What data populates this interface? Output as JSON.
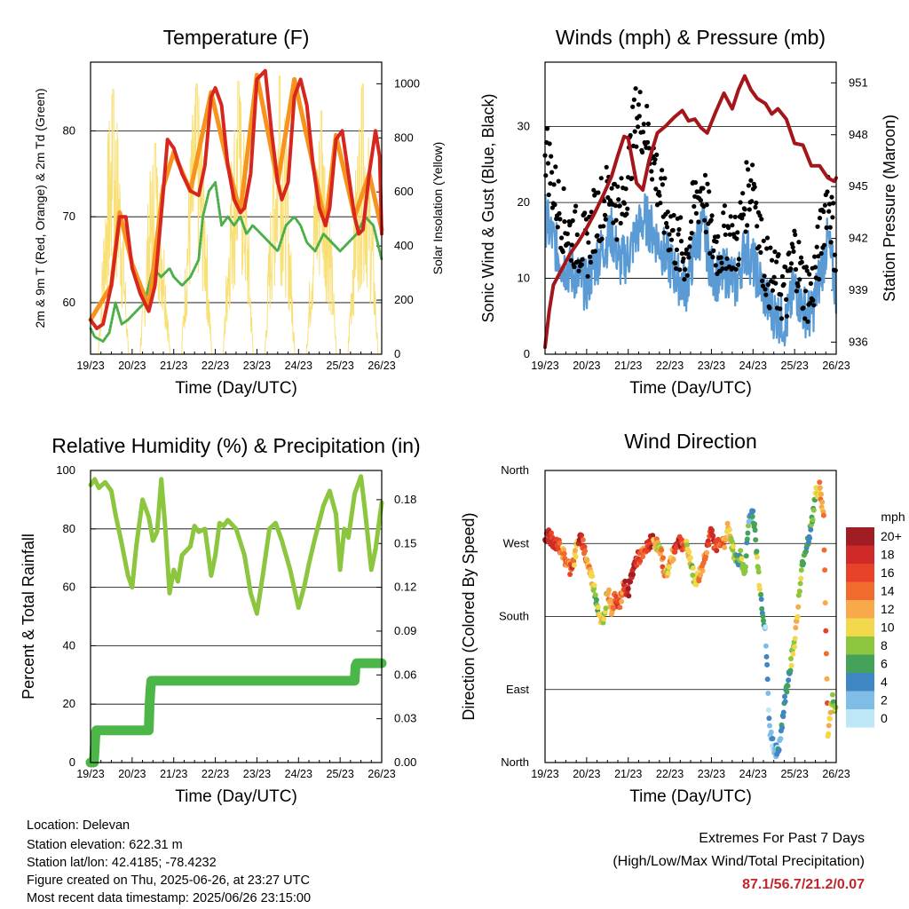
{
  "info": {
    "location": "Location: Delevan",
    "elevation": "Station elevation: 622.31 m",
    "latlon": "Station lat/lon: 42.4185; -78.4232",
    "created": "Figure created on Thu, 2025-06-26, at 23:27 UTC",
    "recent": "Most recent data timestamp: 2025/06/26 23:15:00"
  },
  "extremes": {
    "title": "Extremes For Past 7 Days",
    "subtitle": "(High/Low/Max Wind/Total Precipitation)",
    "values": "87.1/56.7/21.2/0.07"
  },
  "colors": {
    "temp2m": "#d7261e",
    "temp9m": "#f7941d",
    "dewpoint": "#4daf4a",
    "solar": "#f9e076",
    "wind": "#5b9bd5",
    "gust": "#000000",
    "pressure": "#a4161a",
    "rh": "#8cc63f",
    "precip": "#4cb648"
  },
  "chart_data": [
    {
      "type": "line",
      "title": "Temperature (F)",
      "xlabel": "Time (Day/UTC)",
      "ylabel": "2m & 9m T (Red, Orange) & 2m Td (Green)",
      "y2label": "Solar Insolation (Yellow)",
      "x_ticks": [
        "19/23",
        "20/23",
        "21/23",
        "22/23",
        "23/23",
        "24/23",
        "25/23",
        "26/23"
      ],
      "xlim": [
        0,
        7
      ],
      "ylim": [
        54,
        88
      ],
      "y_ticks": [
        60,
        70,
        80
      ],
      "y2lim": [
        0,
        1080
      ],
      "y2_ticks": [
        0,
        200,
        400,
        600,
        800,
        1000
      ],
      "grid": true,
      "series": [
        {
          "name": "2m T",
          "axis": "y",
          "color": "#d7261e",
          "x": [
            0,
            0.15,
            0.3,
            0.5,
            0.7,
            0.85,
            1.0,
            1.2,
            1.4,
            1.55,
            1.75,
            1.85,
            2.0,
            2.2,
            2.4,
            2.6,
            2.75,
            2.9,
            3.0,
            3.15,
            3.3,
            3.45,
            3.6,
            3.7,
            3.85,
            4.0,
            4.2,
            4.35,
            4.5,
            4.6,
            4.75,
            4.9,
            5.05,
            5.2,
            5.35,
            5.5,
            5.65,
            5.75,
            5.9,
            6.05,
            6.2,
            6.35,
            6.45,
            6.55,
            6.7,
            6.85,
            6.95,
            7.0
          ],
          "y": [
            58,
            57,
            57.5,
            62,
            70,
            70,
            64,
            61,
            59,
            62,
            73,
            79,
            78,
            75,
            73,
            72.5,
            76,
            84,
            85,
            83,
            76,
            72,
            70.5,
            71,
            75,
            86,
            87,
            80,
            74,
            72,
            74,
            84,
            86,
            83,
            76,
            71,
            69,
            71,
            79,
            80,
            75,
            70,
            68,
            68.5,
            75,
            80,
            77,
            68
          ]
        },
        {
          "name": "9m T",
          "axis": "y",
          "color": "#f7941d",
          "x": [
            0,
            0.5,
            0.7,
            1.0,
            1.4,
            1.75,
            2.0,
            2.4,
            2.9,
            3.3,
            3.6,
            4.0,
            4.5,
            4.9,
            5.35,
            5.65,
            5.9,
            6.35,
            6.7,
            7.0
          ],
          "y": [
            58,
            62,
            70.5,
            64.5,
            59.5,
            73.5,
            77.5,
            73,
            84.5,
            76,
            70.5,
            86.5,
            74,
            86,
            76,
            69,
            79.5,
            70,
            75,
            68.5
          ]
        },
        {
          "name": "2m Td",
          "axis": "y",
          "color": "#4daf4a",
          "x": [
            0,
            0.1,
            0.3,
            0.45,
            0.6,
            0.75,
            0.9,
            1.1,
            1.3,
            1.5,
            1.7,
            1.9,
            2.0,
            2.2,
            2.4,
            2.6,
            2.7,
            2.85,
            3.0,
            3.15,
            3.3,
            3.45,
            3.6,
            3.75,
            3.9,
            4.1,
            4.3,
            4.5,
            4.7,
            4.9,
            5.05,
            5.2,
            5.4,
            5.6,
            5.8,
            6.0,
            6.2,
            6.4,
            6.6,
            6.8,
            6.95,
            7.0
          ],
          "y": [
            57,
            56,
            55.5,
            56.5,
            60,
            57.5,
            58,
            59,
            60,
            64,
            63,
            64,
            63,
            62,
            63,
            65,
            70,
            73,
            74,
            69,
            70,
            69,
            70,
            68,
            69,
            68,
            67,
            66,
            69,
            70,
            69,
            67,
            66,
            68,
            67,
            66,
            67,
            68,
            70,
            69,
            66,
            65
          ]
        },
        {
          "name": "Solar Insolation",
          "axis": "y2",
          "color": "#f9e076",
          "peaks_x": [
            0.55,
            1.55,
            2.55,
            3.55,
            4.55,
            5.55,
            6.55
          ],
          "peaks_y": [
            980,
            780,
            1000,
            1010,
            1030,
            900,
            1000
          ]
        }
      ]
    },
    {
      "type": "line",
      "title": "Winds (mph) & Pressure (mb)",
      "xlabel": "Time (Day/UTC)",
      "ylabel": "Sonic Wind & Gust (Blue, Black)",
      "y2label": "Station Pressure (Maroon)",
      "x_ticks": [
        "19/23",
        "20/23",
        "21/23",
        "22/23",
        "23/23",
        "24/23",
        "25/23",
        "26/23"
      ],
      "xlim": [
        0,
        7
      ],
      "ylim": [
        0,
        38.5
      ],
      "y_ticks": [
        0,
        10,
        20,
        30
      ],
      "y2lim": [
        935.3,
        952.2
      ],
      "y2_ticks": [
        936,
        939,
        942,
        945,
        948,
        951
      ],
      "grid": true,
      "series": [
        {
          "name": "Sonic Wind",
          "axis": "y",
          "color": "#5b9bd5",
          "x": [
            0,
            0.2,
            0.4,
            0.6,
            0.8,
            1.0,
            1.2,
            1.4,
            1.6,
            1.8,
            2.0,
            2.2,
            2.4,
            2.6,
            2.8,
            3.0,
            3.2,
            3.4,
            3.6,
            3.8,
            4.0,
            4.2,
            4.4,
            4.6,
            4.8,
            5.0,
            5.2,
            5.4,
            5.6,
            5.8,
            6.0,
            6.2,
            6.4,
            6.6,
            6.8,
            7.0
          ],
          "y": [
            18,
            15,
            12,
            11,
            10,
            9,
            12,
            14,
            16,
            12,
            13,
            16,
            18,
            16,
            14,
            12,
            10,
            9,
            14,
            17,
            11,
            10,
            11,
            9,
            14,
            12,
            9,
            6,
            5,
            4,
            9,
            6,
            5,
            10,
            15,
            8
          ]
        },
        {
          "name": "Gust",
          "axis": "y",
          "color": "#000000",
          "x": [
            0,
            0.2,
            0.4,
            0.6,
            0.8,
            1.0,
            1.2,
            1.4,
            1.6,
            1.8,
            2.0,
            2.2,
            2.4,
            2.6,
            2.8,
            3.0,
            3.2,
            3.4,
            3.6,
            3.8,
            4.0,
            4.2,
            4.4,
            4.6,
            4.8,
            5.0,
            5.2,
            5.4,
            5.6,
            5.8,
            6.0,
            6.2,
            6.4,
            6.6,
            6.8,
            7.0
          ],
          "y": [
            28,
            22,
            18,
            16,
            15,
            14,
            18,
            20,
            22,
            18,
            24,
            32,
            30,
            26,
            20,
            17,
            14,
            13,
            20,
            22,
            15,
            14,
            16,
            14,
            20,
            24,
            14,
            10,
            9,
            8,
            14,
            9,
            8,
            14,
            22,
            13
          ]
        },
        {
          "name": "Station Pressure",
          "axis": "y2",
          "color": "#a4161a",
          "x": [
            0,
            0.1,
            0.2,
            0.4,
            0.6,
            0.8,
            1.0,
            1.2,
            1.4,
            1.6,
            1.75,
            1.9,
            2.0,
            2.1,
            2.2,
            2.35,
            2.5,
            2.7,
            2.9,
            3.1,
            3.3,
            3.45,
            3.6,
            3.75,
            3.9,
            4.1,
            4.3,
            4.5,
            4.65,
            4.8,
            4.95,
            5.1,
            5.3,
            5.45,
            5.6,
            5.8,
            6.0,
            6.2,
            6.4,
            6.6,
            6.8,
            6.95,
            7.0
          ],
          "y": [
            935.7,
            937.8,
            939.3,
            940.2,
            941.1,
            941.8,
            942.6,
            943.5,
            944.5,
            945.6,
            946.8,
            947.9,
            947.8,
            946.5,
            945.2,
            944.8,
            946.5,
            948.1,
            948.5,
            949.0,
            949.4,
            948.8,
            948.9,
            948.4,
            948.1,
            949.3,
            950.4,
            949.5,
            950.6,
            951.4,
            950.6,
            950.1,
            949.8,
            949.2,
            949.5,
            948.9,
            947.5,
            947.4,
            946.2,
            946.2,
            945.5,
            945.3,
            945.5
          ]
        }
      ]
    },
    {
      "type": "line",
      "title": "Relative Humidity (%) & Precipitation (in)",
      "xlabel": "Time (Day/UTC)",
      "ylabel": "Percent & Total Rainfall",
      "x_ticks": [
        "19/23",
        "20/23",
        "21/23",
        "22/23",
        "23/23",
        "24/23",
        "25/23",
        "26/23"
      ],
      "xlim": [
        0,
        7
      ],
      "ylim": [
        0,
        100
      ],
      "y_ticks": [
        0,
        20,
        40,
        60,
        80,
        100
      ],
      "y2lim": [
        0,
        0.2
      ],
      "y2_ticks": [
        "0.00",
        "0.03",
        "0.06",
        "0.09",
        "0.12",
        "0.15",
        "0.18"
      ],
      "grid": true,
      "series": [
        {
          "name": "Relative Humidity",
          "axis": "y",
          "color": "#8cc63f",
          "x": [
            0,
            0.1,
            0.2,
            0.35,
            0.5,
            0.6,
            0.75,
            0.9,
            1.0,
            1.1,
            1.25,
            1.4,
            1.5,
            1.6,
            1.7,
            1.8,
            1.9,
            2.0,
            2.1,
            2.2,
            2.4,
            2.5,
            2.6,
            2.75,
            2.9,
            3.0,
            3.1,
            3.2,
            3.3,
            3.5,
            3.7,
            3.85,
            4.0,
            4.15,
            4.3,
            4.45,
            4.6,
            4.8,
            5.0,
            5.15,
            5.25,
            5.4,
            5.6,
            5.75,
            5.9,
            6.0,
            6.1,
            6.2,
            6.35,
            6.5,
            6.6,
            6.75,
            6.85,
            7.0
          ],
          "y": [
            95,
            97,
            94,
            96,
            93,
            85,
            75,
            64,
            60,
            74,
            90,
            84,
            76,
            79,
            97,
            80,
            58,
            66,
            62,
            71,
            74,
            81,
            79,
            80,
            64,
            71,
            82,
            81,
            83,
            80,
            71,
            58,
            51,
            65,
            80,
            82,
            76,
            66,
            53,
            61,
            68,
            77,
            88,
            93,
            85,
            66,
            80,
            77,
            92,
            98,
            86,
            66,
            73,
            89
          ]
        },
        {
          "name": "Total Precipitation",
          "axis": "y2",
          "color": "#4cb648",
          "x": [
            0,
            0.08,
            0.1,
            0.12,
            0.14,
            1.4,
            1.42,
            1.44,
            1.46,
            6.35,
            6.37,
            6.4,
            7.0
          ],
          "y": [
            0.0,
            0.0,
            0.01,
            0.02,
            0.022,
            0.022,
            0.04,
            0.05,
            0.056,
            0.056,
            0.066,
            0.068,
            0.068
          ]
        }
      ]
    },
    {
      "type": "scatter",
      "title": "Wind Direction",
      "xlabel": "Time (Day/UTC)",
      "ylabel": "Direction (Colored By Speed)",
      "x_ticks": [
        "19/23",
        "20/23",
        "21/23",
        "22/23",
        "23/23",
        "24/23",
        "25/23",
        "26/23"
      ],
      "xlim": [
        0,
        7
      ],
      "ylim": [
        0,
        360
      ],
      "y_ticks": [
        "North",
        "East",
        "South",
        "West",
        "North"
      ],
      "grid": true,
      "legend": {
        "title": "mph",
        "position": "right",
        "labels": [
          "20+",
          "18",
          "16",
          "14",
          "12",
          "10",
          "8",
          "6",
          "4",
          "2",
          "0"
        ],
        "colors": [
          "#a01e23",
          "#cf2a27",
          "#e8432a",
          "#f26b2e",
          "#f8a94a",
          "#f2d84c",
          "#8cc63f",
          "#45a25a",
          "#3f86c2",
          "#80bde6",
          "#bde6f7"
        ]
      },
      "series": [
        {
          "name": "Direction",
          "x": [
            0,
            0.1,
            0.2,
            0.3,
            0.4,
            0.5,
            0.6,
            0.7,
            0.8,
            0.9,
            1.0,
            1.1,
            1.2,
            1.3,
            1.4,
            1.5,
            1.6,
            1.7,
            1.8,
            1.9,
            2.0,
            2.1,
            2.2,
            2.3,
            2.4,
            2.5,
            2.6,
            2.7,
            2.8,
            2.9,
            3.0,
            3.1,
            3.2,
            3.3,
            3.4,
            3.5,
            3.6,
            3.7,
            3.8,
            3.9,
            4.0,
            4.1,
            4.2,
            4.3,
            4.4,
            4.5,
            4.6,
            4.7,
            4.8,
            4.9,
            5.0,
            5.1,
            5.2,
            5.3,
            5.4,
            5.5,
            5.6,
            5.7,
            5.8,
            5.9,
            6.0,
            6.1,
            6.2,
            6.3,
            6.4,
            6.5,
            6.6,
            6.7,
            6.8,
            6.9,
            7.0
          ],
          "y": [
            275,
            282,
            268,
            270,
            262,
            248,
            240,
            250,
            275,
            272,
            250,
            232,
            210,
            185,
            168,
            215,
            190,
            205,
            195,
            220,
            210,
            235,
            250,
            255,
            258,
            270,
            275,
            268,
            255,
            230,
            245,
            260,
            275,
            270,
            265,
            250,
            222,
            230,
            245,
            268,
            283,
            265,
            275,
            268,
            290,
            265,
            248,
            255,
            230,
            300,
            310,
            250,
            200,
            160,
            40,
            20,
            10,
            50,
            90,
            120,
            150,
            200,
            250,
            270,
            290,
            330,
            340,
            300,
            35,
            80,
            60
          ],
          "speed": [
            20,
            18,
            16,
            14,
            12,
            14,
            16,
            10,
            18,
            16,
            12,
            10,
            8,
            10,
            8,
            12,
            14,
            16,
            14,
            18,
            20,
            20,
            16,
            14,
            16,
            18,
            12,
            10,
            14,
            10,
            12,
            16,
            18,
            14,
            10,
            8,
            10,
            12,
            14,
            16,
            18,
            16,
            14,
            12,
            10,
            8,
            6,
            8,
            6,
            4,
            6,
            8,
            4,
            2,
            2,
            2,
            4,
            4,
            6,
            8,
            10,
            8,
            6,
            6,
            8,
            10,
            12,
            14,
            10,
            8,
            6
          ]
        }
      ]
    }
  ]
}
